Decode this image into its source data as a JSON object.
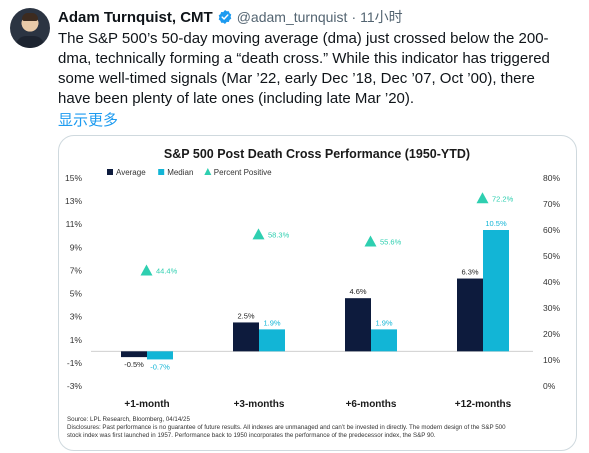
{
  "tweet": {
    "author_name": "Adam Turnquist, CMT",
    "handle": "@adam_turnquist",
    "separator": "·",
    "time": "11小时",
    "text_lines": [
      "The S&P 500’s 50-day moving average (dma) just crossed below the 200-",
      "dma, technically forming a “death cross.” While this indicator has triggered",
      "some well-timed signals (Mar ’22, early Dec ’18, Dec ’07, Oct ’00), there",
      "have been plenty of late ones (including late Mar ’20)."
    ],
    "show_more": "显示更多"
  },
  "colors": {
    "average": "#0d1b3d",
    "median": "#12b5d6",
    "percent_positive": "#2ecfb0",
    "link": "#1d9bf0",
    "verified": "#1d9bf0"
  },
  "icons": {
    "verified": "verified-badge-icon",
    "avatar": "profile-photo"
  },
  "chart_data": {
    "type": "bar",
    "title": "S&P 500 Post Death Cross Performance (1950-YTD)",
    "categories": [
      "+1-month",
      "+3-months",
      "+6-months",
      "+12-months"
    ],
    "series": [
      {
        "name": "Average",
        "kind": "bar",
        "axis": "left",
        "values": [
          -0.5,
          2.5,
          4.6,
          6.3
        ],
        "labels": [
          "-0.5%",
          "2.5%",
          "4.6%",
          "6.3%"
        ]
      },
      {
        "name": "Median",
        "kind": "bar",
        "axis": "left",
        "values": [
          -0.7,
          1.9,
          1.9,
          10.5
        ],
        "labels": [
          "-0.7%",
          "1.9%",
          "1.9%",
          "10.5%"
        ]
      },
      {
        "name": "Percent Positive",
        "kind": "marker",
        "axis": "right",
        "values": [
          44.4,
          58.3,
          55.6,
          72.2
        ],
        "labels": [
          "44.4%",
          "58.3%",
          "55.6%",
          "72.2%"
        ]
      }
    ],
    "y_left": {
      "min": -3,
      "max": 15,
      "ticks": [
        "15%",
        "13%",
        "11%",
        "9%",
        "7%",
        "5%",
        "3%",
        "1%",
        "-1%",
        "-3%"
      ]
    },
    "y_right": {
      "min": 0,
      "max": 80,
      "ticks": [
        "80%",
        "70%",
        "60%",
        "50%",
        "40%",
        "30%",
        "20%",
        "10%",
        "0%"
      ]
    },
    "legend_position": "top",
    "grid": false,
    "source": "Source: LPL Research, Bloomberg, 04/14/25",
    "disclosure_lines": [
      "Disclosures: Past performance is no guarantee of future results. All indexes are unmanaged and can’t be invested in directly. The modern design of the S&P 500",
      "stock index was first launched in 1957. Performance back to 1950 incorporates the performance of the predecessor index, the S&P 90."
    ]
  }
}
